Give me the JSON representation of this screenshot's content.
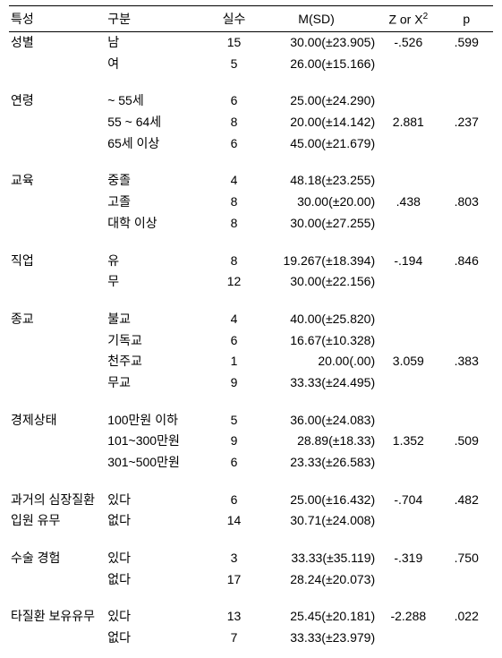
{
  "headers": {
    "char": "특성",
    "cat": "구분",
    "n": "실수",
    "msd": "M(SD)",
    "z": "Z or X",
    "z_sup": "2",
    "p": "p"
  },
  "groups": [
    {
      "label": "성별",
      "stat": "-.526",
      "p": ".599",
      "stat_row": 0,
      "rows": [
        {
          "cat": "남",
          "n": "15",
          "msd": "30.00(±23.905)"
        },
        {
          "cat": "여",
          "n": "5",
          "msd": "26.00(±15.166)"
        }
      ]
    },
    {
      "label": "연령",
      "stat": "2.881",
      "p": ".237",
      "stat_row": 1,
      "rows": [
        {
          "cat": "~ 55세",
          "n": "6",
          "msd": "25.00(±24.290)"
        },
        {
          "cat": "55 ~ 64세",
          "n": "8",
          "msd": "20.00(±14.142)"
        },
        {
          "cat": "65세 이상",
          "n": "6",
          "msd": "45.00(±21.679)"
        }
      ]
    },
    {
      "label": "교육",
      "stat": ".438",
      "p": ".803",
      "stat_row": 1,
      "rows": [
        {
          "cat": "중졸",
          "n": "4",
          "msd": "48.18(±23.255)"
        },
        {
          "cat": "고졸",
          "n": "8",
          "msd": "30.00(±20.00)"
        },
        {
          "cat": "대학 이상",
          "n": "8",
          "msd": "30.00(±27.255)"
        }
      ]
    },
    {
      "label": "직업",
      "stat": "-.194",
      "p": ".846",
      "stat_row": 0,
      "rows": [
        {
          "cat": "유",
          "n": "8",
          "msd": "19.267(±18.394)"
        },
        {
          "cat": "무",
          "n": "12",
          "msd": "30.00(±22.156)"
        }
      ]
    },
    {
      "label": "종교",
      "stat": "3.059",
      "p": ".383",
      "stat_row": 2,
      "rows": [
        {
          "cat": "불교",
          "n": "4",
          "msd": "40.00(±25.820)"
        },
        {
          "cat": "기독교",
          "n": "6",
          "msd": "16.67(±10.328)"
        },
        {
          "cat": "천주교",
          "n": "1",
          "msd": "20.00(.00)"
        },
        {
          "cat": "무교",
          "n": "9",
          "msd": "33.33(±24.495)"
        }
      ]
    },
    {
      "label": "경제상태",
      "stat": "1.352",
      "p": ".509",
      "stat_row": 1,
      "rows": [
        {
          "cat": "100만원 이하",
          "n": "5",
          "msd": "36.00(±24.083)"
        },
        {
          "cat": "101~300만원",
          "n": "9",
          "msd": "28.89(±18.33)"
        },
        {
          "cat": "301~500만원",
          "n": "6",
          "msd": "23.33(±26.583)"
        }
      ]
    },
    {
      "label": "과거의 심장질환",
      "label2": "입원 유무",
      "stat": "-.704",
      "p": ".482",
      "stat_row": 0,
      "rows": [
        {
          "cat": "있다",
          "n": "6",
          "msd": "25.00(±16.432)"
        },
        {
          "cat": "없다",
          "n": "14",
          "msd": "30.71(±24.008)"
        }
      ]
    },
    {
      "label": "수술 경험",
      "stat": "-.319",
      "p": ".750",
      "stat_row": 0,
      "rows": [
        {
          "cat": "있다",
          "n": "3",
          "msd": "33.33(±35.119)"
        },
        {
          "cat": "없다",
          "n": "17",
          "msd": "28.24(±20.073)"
        }
      ]
    },
    {
      "label": "타질환 보유유무",
      "stat": "-2.288",
      "p": ".022",
      "stat_row": 0,
      "rows": [
        {
          "cat": "있다",
          "n": "13",
          "msd": "25.45(±20.181)"
        },
        {
          "cat": "없다",
          "n": "7",
          "msd": "33.33(±23.979)"
        }
      ]
    }
  ]
}
